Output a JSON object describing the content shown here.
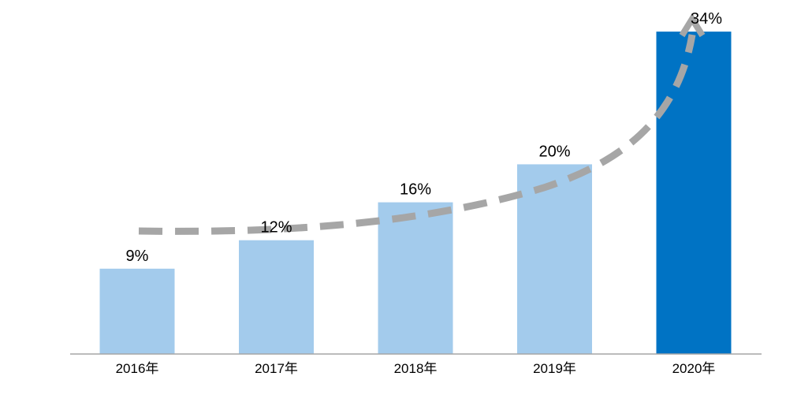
{
  "chart_data": {
    "type": "bar",
    "categories": [
      "2016年",
      "2017年",
      "2018年",
      "2019年",
      "2020年"
    ],
    "values": [
      9,
      12,
      16,
      20,
      34
    ],
    "data_labels": [
      "9%",
      "12%",
      "16%",
      "20%",
      "34%"
    ],
    "title": "",
    "xlabel": "",
    "ylabel": "",
    "ylim": [
      0,
      36
    ],
    "y_axis_visible": false,
    "grid": false,
    "legend": "none",
    "trend_arrow": "dashed upward curved arrow",
    "colors": {
      "bar": "#a3cbec",
      "highlight_bar": "#0073c4",
      "trend": "#a6a6a6",
      "axis": "#a6a6a6"
    },
    "highlight_index": 4
  }
}
